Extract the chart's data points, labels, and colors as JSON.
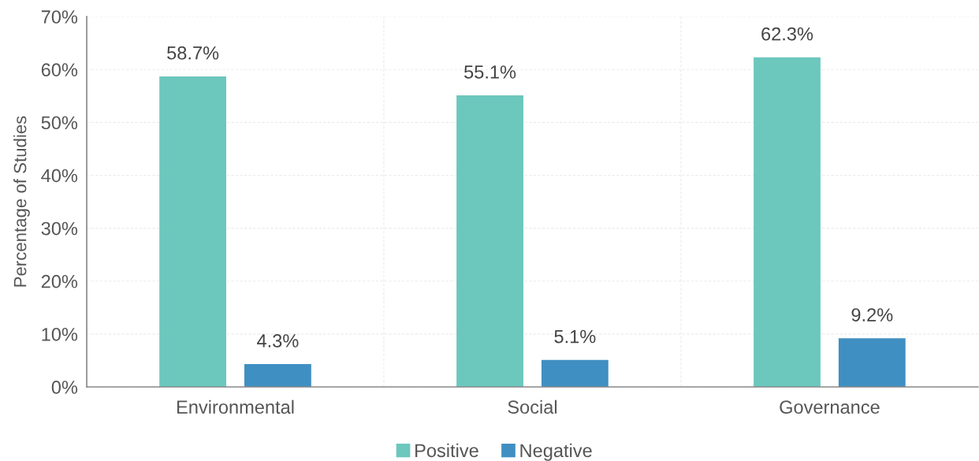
{
  "chart_data": {
    "type": "bar",
    "ylabel": "Percentage of Studies",
    "categories": [
      "Environmental",
      "Social",
      "Governance"
    ],
    "series": [
      {
        "name": "Positive",
        "color": "#6cc7bd",
        "values": [
          58.7,
          55.1,
          62.3
        ],
        "value_labels": [
          "58.7%",
          "55.1%",
          "62.3%"
        ]
      },
      {
        "name": "Negative",
        "color": "#3f8fc2",
        "values": [
          4.3,
          5.1,
          9.2
        ],
        "value_labels": [
          "4.3%",
          "5.1%",
          "9.2%"
        ]
      }
    ],
    "ylim": [
      0,
      70
    ],
    "yticks": [
      {
        "value": 0,
        "label": "0%"
      },
      {
        "value": 10,
        "label": "10%"
      },
      {
        "value": 20,
        "label": "20%"
      },
      {
        "value": 30,
        "label": "30%"
      },
      {
        "value": 40,
        "label": "40%"
      },
      {
        "value": 50,
        "label": "50%"
      },
      {
        "value": 60,
        "label": "60%"
      },
      {
        "value": 70,
        "label": "70%"
      }
    ],
    "grid": true,
    "legend": "bottom"
  }
}
